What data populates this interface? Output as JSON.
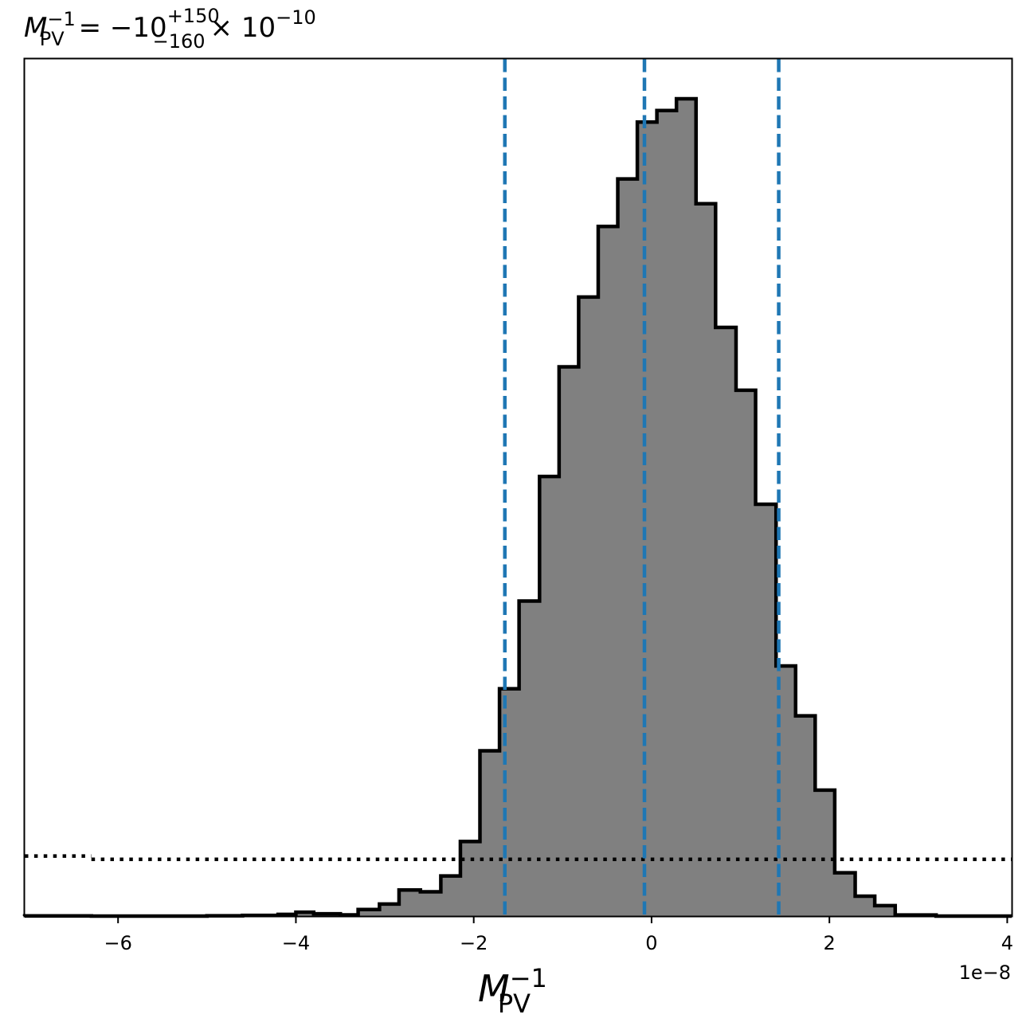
{
  "chart_data": {
    "type": "histogram",
    "title": {
      "symbol": "M",
      "subscript": "PV",
      "superscript": "−1",
      "value": "= −10",
      "upper_error": "+150",
      "lower_error": "−160",
      "multiplier": "× 10",
      "exponent": "−10"
    },
    "xlabel": {
      "symbol": "M",
      "subscript": "PV",
      "superscript": "−1"
    },
    "x_offset_label": "1e−8",
    "xlim": [
      -7.05,
      4.05
    ],
    "ylim": [
      0,
      1.0
    ],
    "x_ticks": [
      {
        "value": -6,
        "label": "−6"
      },
      {
        "value": -4,
        "label": "−4"
      },
      {
        "value": -2,
        "label": "−2"
      },
      {
        "value": 0,
        "label": "0"
      },
      {
        "value": 2,
        "label": "2"
      },
      {
        "value": 4,
        "label": "4"
      }
    ],
    "bin_edges": [
      -7.05,
      -6.3,
      -5.0,
      -4.6,
      -4.2,
      -4.0,
      -3.8,
      -3.5,
      -3.3,
      -3.06,
      -2.84,
      -2.6,
      -2.37,
      -2.15,
      -1.93,
      -1.71,
      -1.49,
      -1.26,
      -1.04,
      -0.82,
      -0.6,
      -0.38,
      -0.16,
      0.06,
      0.28,
      0.5,
      0.72,
      0.95,
      1.17,
      1.4,
      1.62,
      1.84,
      2.06,
      2.29,
      2.51,
      2.74,
      3.2,
      4.05
    ],
    "bin_heights": [
      0.0003,
      0.0,
      0.0004,
      0.0008,
      0.0021,
      0.0047,
      0.0028,
      0.0015,
      0.0081,
      0.0148,
      0.0319,
      0.0297,
      0.0491,
      0.0912,
      0.2022,
      0.2782,
      0.3855,
      0.5379,
      0.672,
      0.7574,
      0.8438,
      0.9019,
      0.9715,
      0.9856,
      1.0,
      0.8716,
      0.7203,
      0.6434,
      0.5039,
      0.306,
      0.245,
      0.1541,
      0.053,
      0.0244,
      0.0128,
      0.0013,
      0.0
    ],
    "quantile_lines": {
      "values": [
        -1.65,
        -0.08,
        1.43
      ],
      "color": "#1f77b4",
      "style": "dashed"
    },
    "prior_line": {
      "style": "dotted",
      "color": "#000000",
      "segments": [
        {
          "x": [
            -7.05,
            -6.3
          ],
          "y": 0.0735
        },
        {
          "x": [
            -6.3,
            4.05
          ],
          "y": 0.0695
        }
      ]
    },
    "fill_color": "#808080",
    "edge_color": "#000000",
    "grid": false,
    "legend": "none"
  }
}
